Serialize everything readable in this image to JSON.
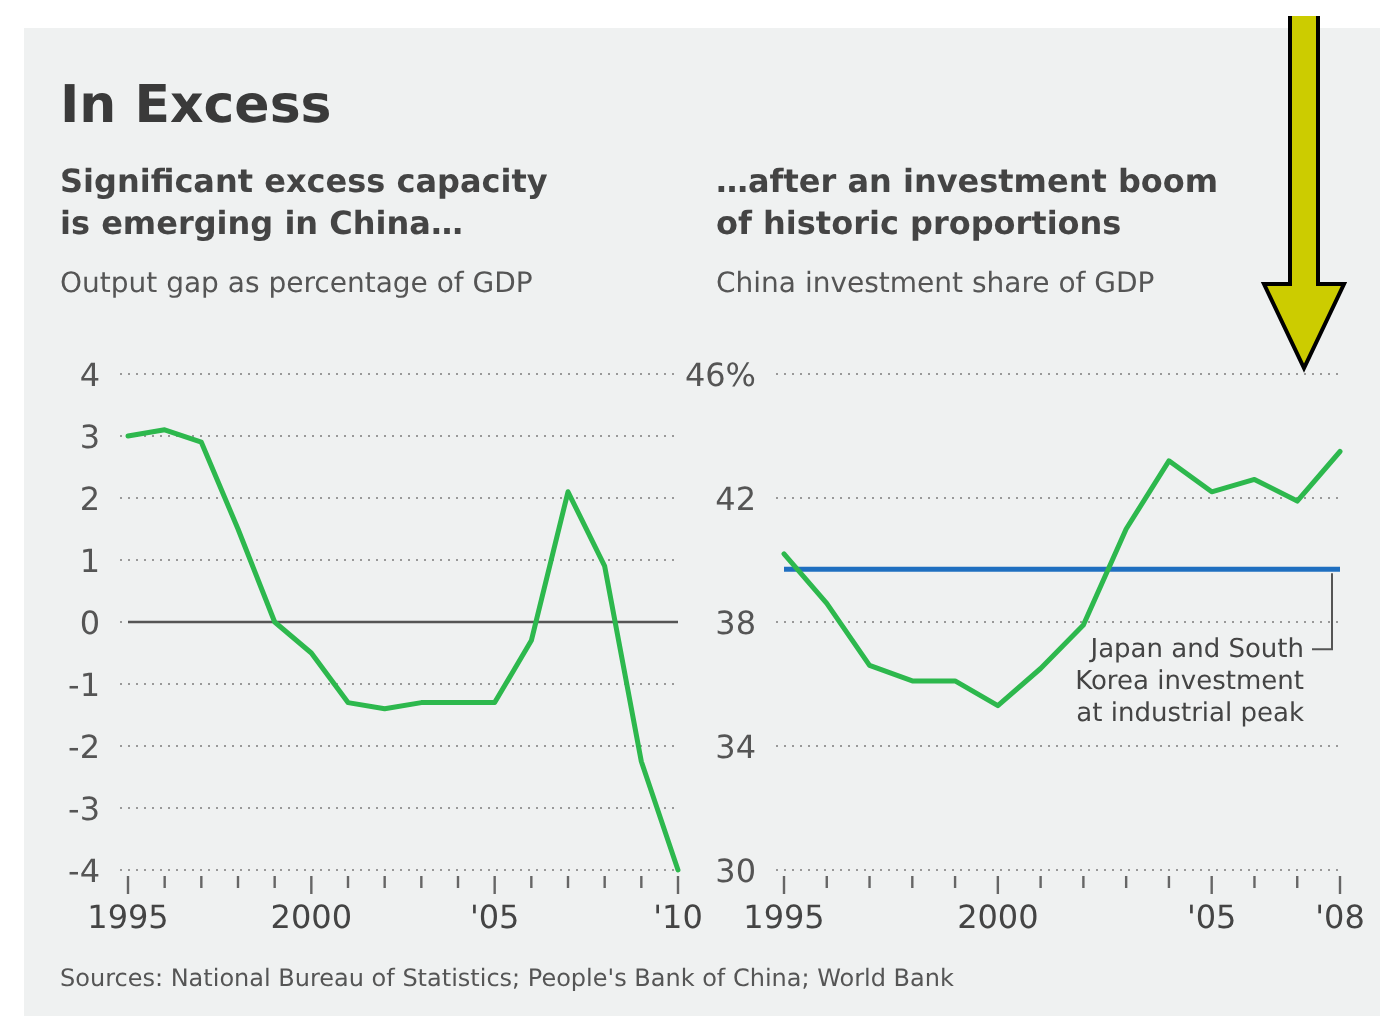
{
  "chart_data": [
    {
      "type": "line",
      "title": "In Excess",
      "subtitle": "Significant excess capacity is emerging in China…",
      "ylabel": "Output gap as percentage of GDP",
      "x": [
        1995,
        1996,
        1997,
        1998,
        1999,
        2000,
        2001,
        2002,
        2003,
        2004,
        2005,
        2006,
        2007,
        2008,
        2009,
        2010
      ],
      "series": [
        {
          "color": "#2db84d",
          "values": [
            3.0,
            3.1,
            2.9,
            1.5,
            0,
            -0.5,
            -1.3,
            -1.4,
            -1.3,
            -1.3,
            -1.3,
            -0.3,
            2.1,
            0.9,
            -2.25,
            -4
          ]
        }
      ],
      "xlim": [
        1995,
        2010
      ],
      "xticks": [
        {
          "value": 1995,
          "label": "1995"
        },
        {
          "value": 1996,
          "label": null
        },
        {
          "value": 1997,
          "label": null
        },
        {
          "value": 1998,
          "label": null
        },
        {
          "value": 1999,
          "label": null
        },
        {
          "value": 2000,
          "label": "2000"
        },
        {
          "value": 2001,
          "label": null
        },
        {
          "value": 2002,
          "label": null
        },
        {
          "value": 2003,
          "label": null
        },
        {
          "value": 2004,
          "label": null
        },
        {
          "value": 2005,
          "label": "'05"
        },
        {
          "value": 2006,
          "label": null
        },
        {
          "value": 2007,
          "label": null
        },
        {
          "value": 2008,
          "label": null
        },
        {
          "value": 2009,
          "label": null
        },
        {
          "value": 2010,
          "label": "'10"
        }
      ],
      "ylim": [
        -4,
        4
      ],
      "yticks": [
        -4,
        -3,
        -2,
        -1,
        0,
        1,
        2,
        3,
        4
      ],
      "grid": "y",
      "marker": "none",
      "line_style": "solid",
      "ref_lines": [
        {
          "axis": "y",
          "value": 0,
          "color": "#555555"
        }
      ],
      "annotations": [
        "Sources: National Bureau of Statistics; People's Bank of China; World Bank"
      ]
    },
    {
      "type": "line",
      "subtitle": "…after an investment boom of historic proportions",
      "ylabel": "China investment share of GDP",
      "x": [
        1995,
        1996,
        1997,
        1998,
        1999,
        2000,
        2001,
        2002,
        2003,
        2004,
        2005,
        2006,
        2007,
        2008
      ],
      "series": [
        {
          "color": "#2db84d",
          "values": [
            40.2,
            38.6,
            36.6,
            36.1,
            36.1,
            35.3,
            36.5,
            37.9,
            41.0,
            43.2,
            42.2,
            42.6,
            41.9,
            43.5
          ]
        }
      ],
      "xlim": [
        1995,
        2008
      ],
      "xticks": [
        {
          "value": 1995,
          "label": "1995"
        },
        {
          "value": 1996,
          "label": null
        },
        {
          "value": 1997,
          "label": null
        },
        {
          "value": 1998,
          "label": null
        },
        {
          "value": 1999,
          "label": null
        },
        {
          "value": 2000,
          "label": "2000"
        },
        {
          "value": 2001,
          "label": null
        },
        {
          "value": 2002,
          "label": null
        },
        {
          "value": 2003,
          "label": null
        },
        {
          "value": 2004,
          "label": null
        },
        {
          "value": 2005,
          "label": "'05"
        },
        {
          "value": 2006,
          "label": null
        },
        {
          "value": 2007,
          "label": null
        },
        {
          "value": 2008,
          "label": "'08"
        }
      ],
      "ylim": [
        30,
        46
      ],
      "yticks": [
        30,
        34,
        38,
        42,
        {
          "value": 46,
          "label": "46%"
        }
      ],
      "grid": "y",
      "marker": "none",
      "line_style": "solid",
      "ref_lines": [
        {
          "axis": "y",
          "value": 39.7,
          "label": "Japan and South Korea investment at industrial peak",
          "color": "#1f6fc0"
        }
      ]
    }
  ]
}
